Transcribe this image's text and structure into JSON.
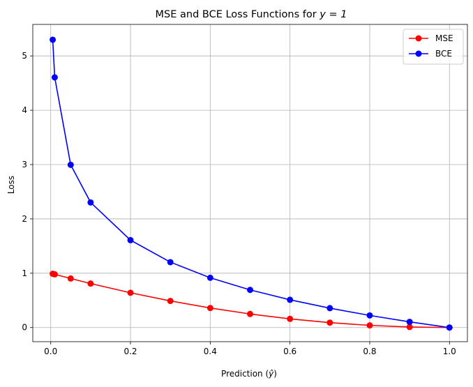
{
  "chart_data": {
    "type": "line",
    "title": "MSE and BCE Loss Functions for ",
    "title_math": "y = 1",
    "xlabel": "Prediction (",
    "xlabel_math": "ŷ",
    "xlabel_end": ")",
    "ylabel": "Loss",
    "xlim": [
      -0.045,
      1.045
    ],
    "ylim": [
      -0.26,
      5.58
    ],
    "xticks": [
      0.0,
      0.2,
      0.4,
      0.6,
      0.8,
      1.0
    ],
    "xtick_labels": [
      "0.0",
      "0.2",
      "0.4",
      "0.6",
      "0.8",
      "1.0"
    ],
    "yticks": [
      0,
      1,
      2,
      3,
      4,
      5
    ],
    "ytick_labels": [
      "0",
      "1",
      "2",
      "3",
      "4",
      "5"
    ],
    "grid": true,
    "legend_position": "top-right",
    "x": [
      0.005,
      0.01,
      0.05,
      0.1,
      0.2,
      0.3,
      0.4,
      0.5,
      0.6,
      0.7,
      0.8,
      0.9,
      0.9999
    ],
    "series": [
      {
        "name": "MSE",
        "color": "#ff0000",
        "marker": "circle",
        "values": [
          0.99,
          0.98,
          0.903,
          0.81,
          0.64,
          0.49,
          0.36,
          0.25,
          0.16,
          0.09,
          0.04,
          0.01,
          0.0
        ]
      },
      {
        "name": "BCE",
        "color": "#0000ff",
        "marker": "circle",
        "values": [
          5.298,
          4.605,
          2.996,
          2.303,
          1.609,
          1.204,
          0.916,
          0.693,
          0.511,
          0.357,
          0.223,
          0.105,
          0.0
        ]
      }
    ]
  }
}
